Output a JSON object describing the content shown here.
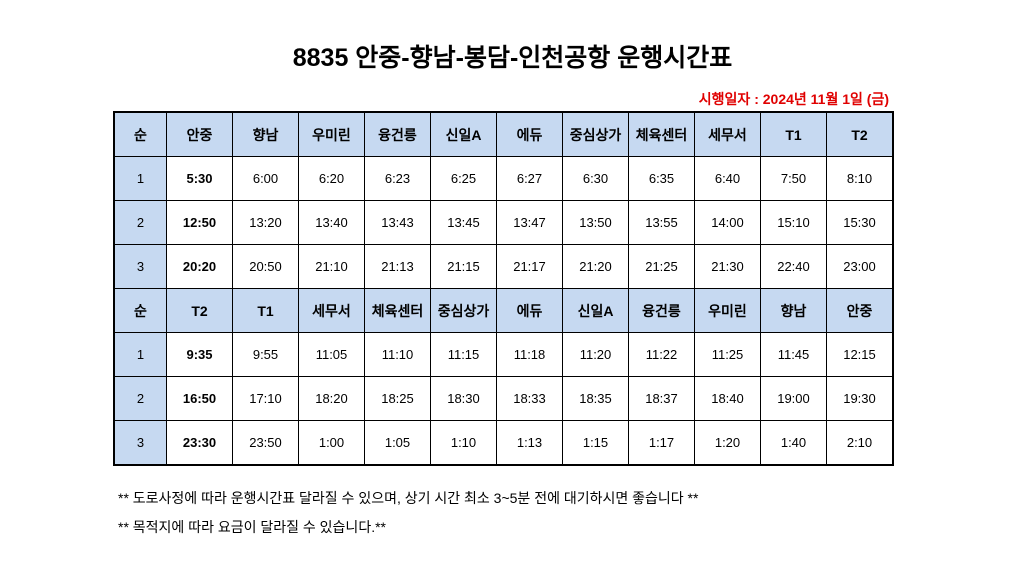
{
  "title": "8835 안중-향남-봉담-인천공항 운행시간표",
  "effective_date": "시행일자 : 2024년 11월 1일 (금)",
  "tables": [
    {
      "header": [
        "순",
        "안중",
        "향남",
        "우미린",
        "융건릉",
        "신일A",
        "에듀",
        "중심상가",
        "체육센터",
        "세무서",
        "T1",
        "T2"
      ],
      "rows": [
        [
          "1",
          "5:30",
          "6:00",
          "6:20",
          "6:23",
          "6:25",
          "6:27",
          "6:30",
          "6:35",
          "6:40",
          "7:50",
          "8:10"
        ],
        [
          "2",
          "12:50",
          "13:20",
          "13:40",
          "13:43",
          "13:45",
          "13:47",
          "13:50",
          "13:55",
          "14:00",
          "15:10",
          "15:30"
        ],
        [
          "3",
          "20:20",
          "20:50",
          "21:10",
          "21:13",
          "21:15",
          "21:17",
          "21:20",
          "21:25",
          "21:30",
          "22:40",
          "23:00"
        ]
      ]
    },
    {
      "header": [
        "순",
        "T2",
        "T1",
        "세무서",
        "체육센터",
        "중심상가",
        "에듀",
        "신일A",
        "융건릉",
        "우미린",
        "향남",
        "안중"
      ],
      "rows": [
        [
          "1",
          "9:35",
          "9:55",
          "11:05",
          "11:10",
          "11:15",
          "11:18",
          "11:20",
          "11:22",
          "11:25",
          "11:45",
          "12:15"
        ],
        [
          "2",
          "16:50",
          "17:10",
          "18:20",
          "18:25",
          "18:30",
          "18:33",
          "18:35",
          "18:37",
          "18:40",
          "19:00",
          "19:30"
        ],
        [
          "3",
          "23:30",
          "23:50",
          "1:00",
          "1:05",
          "1:10",
          "1:13",
          "1:15",
          "1:17",
          "1:20",
          "1:40",
          "2:10"
        ]
      ]
    }
  ],
  "notes": [
    "** 도로사정에 따라 운행시간표 달라질 수 있으며, 상기 시간 최소 3~5분 전에 대기하시면 좋습니다 **",
    "** 목적지에 따라 요금이 달라질 수 있습니다.**"
  ]
}
